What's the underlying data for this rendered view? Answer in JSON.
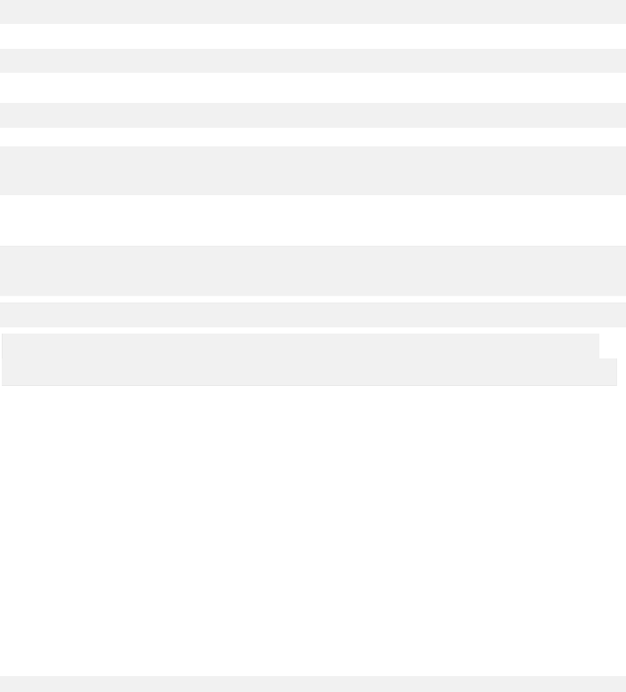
{
  "skeleton": {
    "fill_color": "#f1f1f1",
    "background_color": "#ffffff"
  }
}
